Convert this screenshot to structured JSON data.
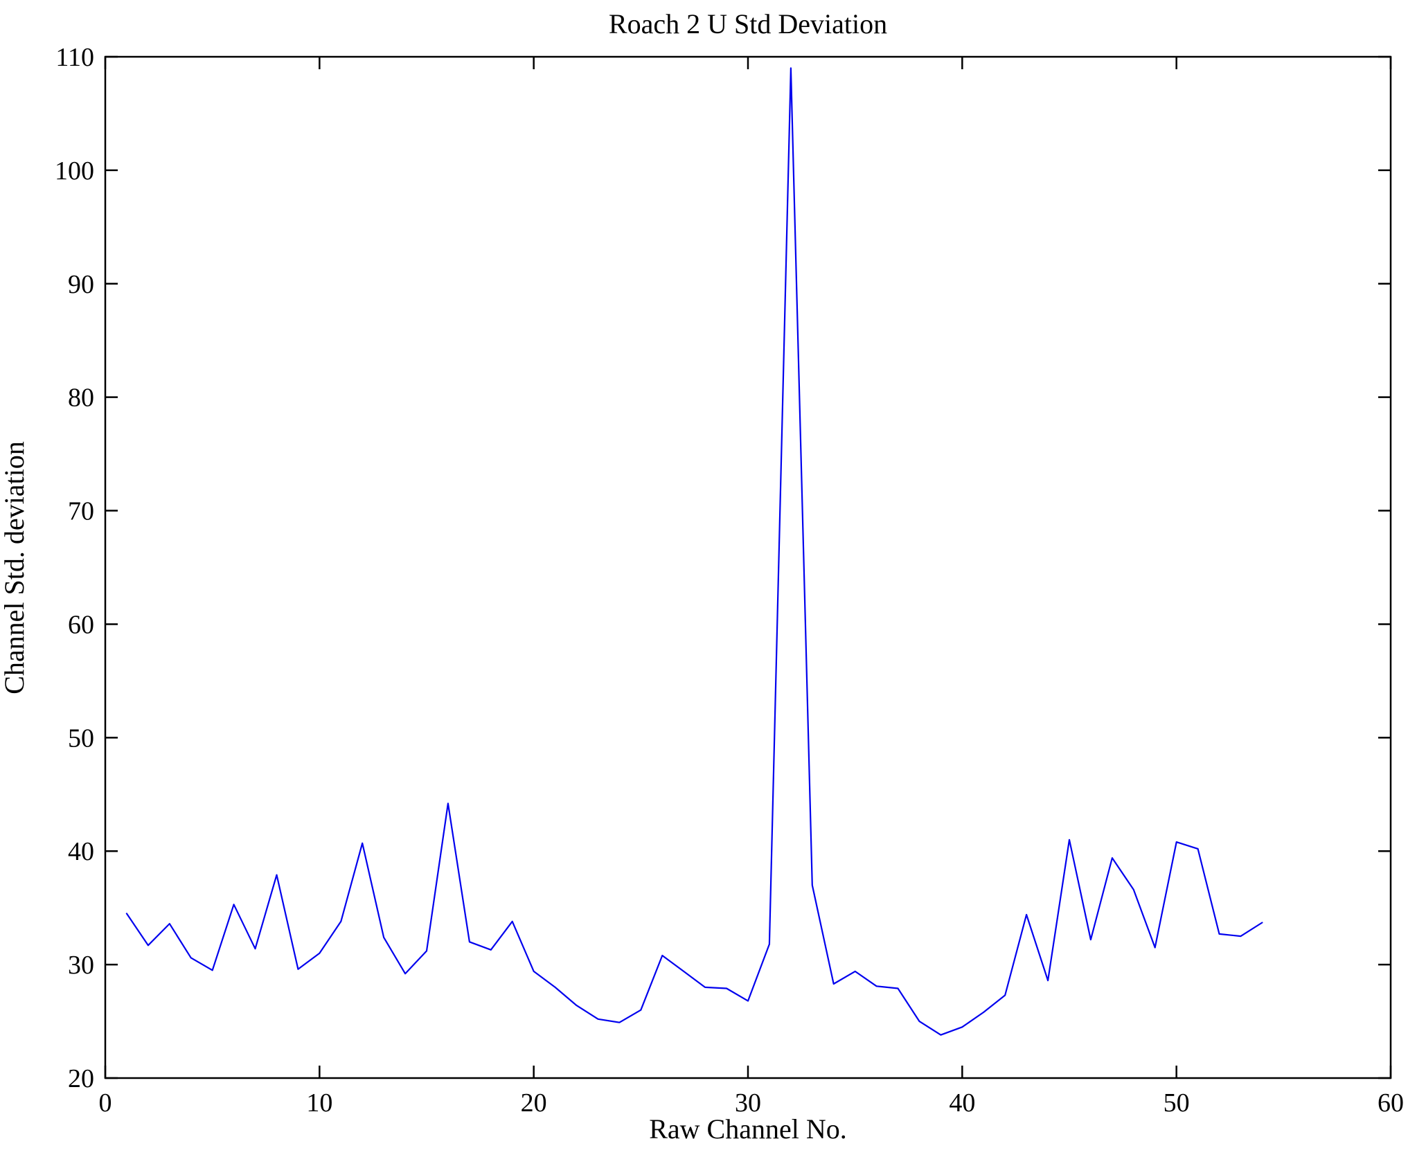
{
  "chart_data": {
    "type": "line",
    "title": "Roach 2 U Std Deviation",
    "xlabel": "Raw Channel No.",
    "ylabel": "Channel Std. deviation",
    "xlim": [
      0,
      60
    ],
    "ylim": [
      20,
      110
    ],
    "xticks": [
      0,
      10,
      20,
      30,
      40,
      50,
      60
    ],
    "yticks": [
      20,
      30,
      40,
      50,
      60,
      70,
      80,
      90,
      100,
      110
    ],
    "grid": false,
    "legend": "none",
    "line_color": "#0000ee",
    "axis_color": "#000000",
    "background_color": "#ffffff",
    "series": [
      {
        "name": "Channel Std. deviation",
        "x": [
          1,
          2,
          3,
          4,
          5,
          6,
          7,
          8,
          9,
          10,
          11,
          12,
          13,
          14,
          15,
          16,
          17,
          18,
          19,
          20,
          21,
          22,
          23,
          24,
          25,
          26,
          27,
          28,
          29,
          30,
          31,
          32,
          33,
          34,
          35,
          36,
          37,
          38,
          39,
          40,
          41,
          42,
          43,
          44,
          45,
          46,
          47,
          48,
          49,
          50,
          51,
          52,
          53,
          54
        ],
        "y": [
          34.5,
          31.7,
          33.6,
          30.6,
          29.5,
          35.3,
          31.4,
          37.9,
          29.6,
          31.0,
          33.8,
          40.7,
          32.4,
          29.2,
          31.2,
          44.2,
          32.0,
          31.3,
          33.8,
          29.4,
          28.0,
          26.4,
          25.2,
          24.9,
          26.0,
          30.8,
          29.4,
          28.0,
          27.9,
          26.8,
          31.8,
          109.0,
          37.0,
          28.3,
          29.4,
          28.1,
          27.9,
          25.0,
          23.8,
          24.5,
          25.8,
          27.3,
          34.4,
          28.6,
          41.0,
          32.2,
          39.4,
          36.6,
          31.5,
          40.8,
          40.2,
          32.7,
          32.5,
          33.7
        ]
      }
    ]
  }
}
